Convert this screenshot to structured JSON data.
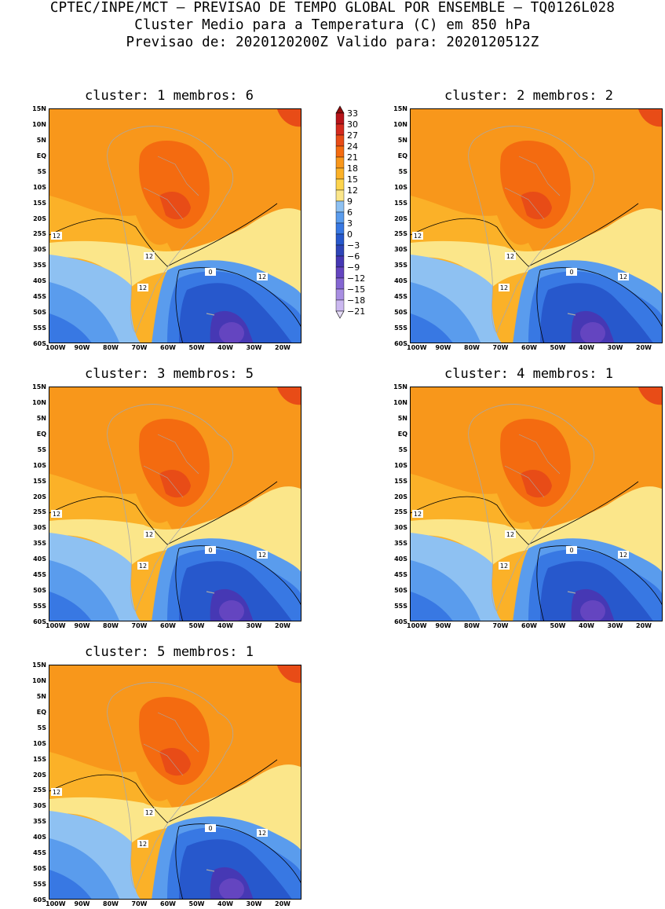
{
  "header": {
    "line1": "CPTEC/INPE/MCT – PREVISAO DE TEMPO GLOBAL POR ENSEMBLE – TQ0126L028",
    "line2": "Cluster Medio para a Temperatura (C) em 850 hPa",
    "line3": "Previsao de: 2020120200Z   Valido para: 2020120512Z"
  },
  "panels": [
    {
      "title": "cluster: 1  membros: 6"
    },
    {
      "title": "cluster: 2  membros: 2"
    },
    {
      "title": "cluster: 3  membros: 5"
    },
    {
      "title": "cluster: 4  membros: 1"
    },
    {
      "title": "cluster: 5  membros: 1"
    }
  ],
  "lat_ticks": [
    "15N",
    "10N",
    "5N",
    "EQ",
    "5S",
    "10S",
    "15S",
    "20S",
    "25S",
    "30S",
    "35S",
    "40S",
    "45S",
    "50S",
    "55S",
    "60S"
  ],
  "lon_ticks": [
    "100W",
    "90W",
    "80W",
    "70W",
    "60W",
    "50W",
    "40W",
    "30W",
    "20W"
  ],
  "contour_labels": [
    "12",
    "12",
    "12",
    "0",
    "12"
  ],
  "colorbar": {
    "levels": [
      "33",
      "30",
      "27",
      "24",
      "21",
      "18",
      "15",
      "12",
      "9",
      "6",
      "3",
      "0",
      "−3",
      "−6",
      "−9",
      "−12",
      "−15",
      "−18",
      "−21"
    ],
    "colors": [
      "#8e0b0b",
      "#b8141a",
      "#d42a1e",
      "#e84c17",
      "#f46b10",
      "#f8971b",
      "#fbb128",
      "#fdd44e",
      "#fbe68a",
      "#8ec1f2",
      "#5a9ced",
      "#3878e3",
      "#2758cc",
      "#2e45b8",
      "#4638b4",
      "#6445c0",
      "#8466d2",
      "#a88ee2",
      "#cbb8f0",
      "#e6dcf8"
    ]
  }
}
